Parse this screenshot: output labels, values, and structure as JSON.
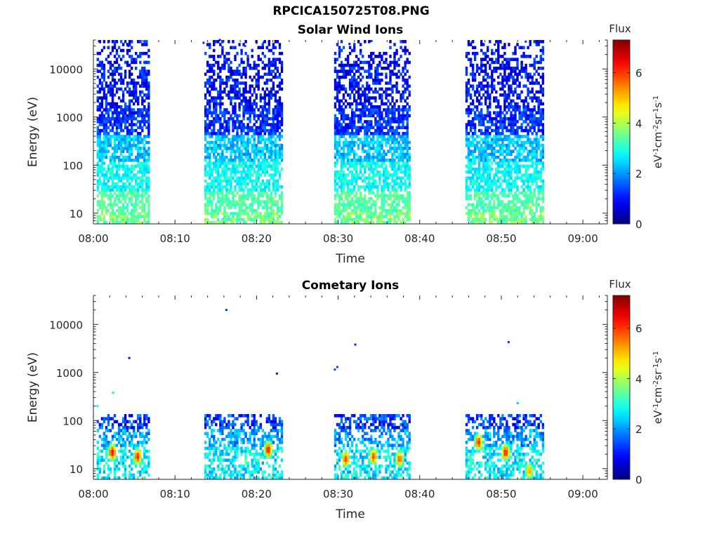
{
  "figure": {
    "title": "RPCICA150725T08.PNG"
  },
  "chart_data": [
    {
      "type": "heatmap",
      "title": "Solar Wind Ions",
      "xlabel": "Time",
      "ylabel": "Energy (eV)",
      "x_ticks": [
        "08:00",
        "08:10",
        "08:20",
        "08:30",
        "08:40",
        "08:50",
        "09:00"
      ],
      "x_range_minutes": [
        0,
        63
      ],
      "y_scale": "log",
      "y_range": [
        6,
        40000
      ],
      "y_ticks": [
        10,
        100,
        1000,
        10000
      ],
      "y_tick_labels": [
        "10",
        "100",
        "1000",
        "10000"
      ],
      "colorbar": {
        "label": "Flux",
        "unit": "eV⁻¹cm⁻²sr⁻¹s⁻¹",
        "range": [
          0,
          7.3
        ],
        "ticks": [
          0,
          2,
          4,
          6
        ],
        "colormap": "jet"
      },
      "activity_windows_minutes": [
        [
          0.4,
          6.8
        ],
        [
          13.6,
          23.1
        ],
        [
          29.5,
          38.8
        ],
        [
          45.6,
          55.2
        ]
      ],
      "sparse_points": [
        {
          "t": 0.7,
          "e": 38000,
          "v": 1.0
        },
        {
          "t": 1.8,
          "e": 28000,
          "v": 1.4
        },
        {
          "t": 4.3,
          "e": 30000,
          "v": 1.1
        },
        {
          "t": 13.5,
          "e": 35000,
          "v": 1.2
        },
        {
          "t": 15.5,
          "e": 40000,
          "v": 0.8
        },
        {
          "t": 18.6,
          "e": 30000,
          "v": 1.3
        },
        {
          "t": 20.9,
          "e": 36000,
          "v": 1.0
        },
        {
          "t": 30.2,
          "e": 27000,
          "v": 1.2
        },
        {
          "t": 31.4,
          "e": 33000,
          "v": 0.9
        },
        {
          "t": 34.1,
          "e": 38000,
          "v": 1.5
        },
        {
          "t": 46.4,
          "e": 36000,
          "v": 1.1
        },
        {
          "t": 49.2,
          "e": 32000,
          "v": 0.9
        },
        {
          "t": 53.0,
          "e": 37000,
          "v": 1.2
        }
      ]
    },
    {
      "type": "heatmap",
      "title": "Cometary Ions",
      "xlabel": "Time",
      "ylabel": "Energy (eV)",
      "x_ticks": [
        "08:00",
        "08:10",
        "08:20",
        "08:30",
        "08:40",
        "08:50",
        "09:00"
      ],
      "x_range_minutes": [
        0,
        63
      ],
      "y_scale": "log",
      "y_range": [
        6,
        40000
      ],
      "y_ticks": [
        10,
        100,
        1000,
        10000
      ],
      "y_tick_labels": [
        "10",
        "100",
        "1000",
        "10000"
      ],
      "colorbar": {
        "label": "Flux",
        "unit": "eV⁻¹cm⁻²sr⁻¹s⁻¹",
        "range": [
          0,
          7.3
        ],
        "ticks": [
          0,
          2,
          4,
          6
        ],
        "colormap": "jet"
      },
      "activity_windows_minutes": [
        [
          0.4,
          6.8
        ],
        [
          13.6,
          23.1
        ],
        [
          29.5,
          38.8
        ],
        [
          45.6,
          55.2
        ]
      ],
      "max_energy_ev": 140,
      "hotspots": [
        {
          "t": 2.2,
          "e": 22,
          "v": 6.4
        },
        {
          "t": 5.3,
          "e": 18,
          "v": 6.2
        },
        {
          "t": 18.5,
          "e": 14,
          "v": 3.6
        },
        {
          "t": 21.3,
          "e": 25,
          "v": 6.3
        },
        {
          "t": 30.8,
          "e": 16,
          "v": 6.0
        },
        {
          "t": 34.2,
          "e": 18,
          "v": 5.9
        },
        {
          "t": 37.4,
          "e": 16,
          "v": 5.8
        },
        {
          "t": 47.1,
          "e": 36,
          "v": 6.1
        },
        {
          "t": 50.4,
          "e": 22,
          "v": 6.3
        },
        {
          "t": 53.3,
          "e": 9,
          "v": 5.3
        }
      ],
      "sparse_points": [
        {
          "t": 0.5,
          "e": 200,
          "v": 2.8
        },
        {
          "t": 2.4,
          "e": 380,
          "v": 2.6
        },
        {
          "t": 4.4,
          "e": 2000,
          "v": 1.0
        },
        {
          "t": 16.3,
          "e": 20000,
          "v": 1.3
        },
        {
          "t": 22.5,
          "e": 950,
          "v": 1.1
        },
        {
          "t": 29.6,
          "e": 1150,
          "v": 1.4
        },
        {
          "t": 29.9,
          "e": 1300,
          "v": 1.4
        },
        {
          "t": 32.1,
          "e": 3800,
          "v": 1.2
        },
        {
          "t": 50.9,
          "e": 4300,
          "v": 1.3
        },
        {
          "t": 52.0,
          "e": 230,
          "v": 2.4
        }
      ]
    }
  ]
}
